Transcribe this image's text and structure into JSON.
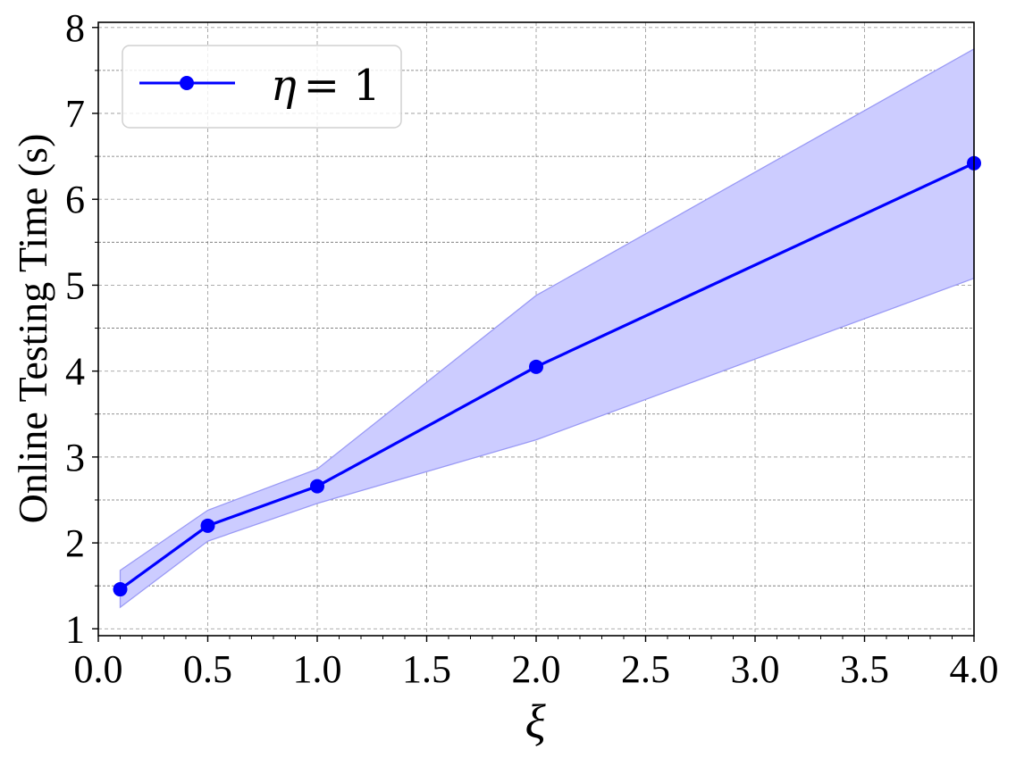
{
  "chart_data": {
    "type": "line",
    "title": "",
    "xlabel": "ξ",
    "ylabel": "Online Testing Time (s)",
    "xlim": [
      0.0,
      4.0
    ],
    "ylim": [
      0.92,
      8.06
    ],
    "xticks": [
      0.0,
      0.5,
      1.0,
      1.5,
      2.0,
      2.5,
      3.0,
      3.5,
      4.0
    ],
    "xtick_labels": [
      "0.0",
      "0.5",
      "1.0",
      "1.5",
      "2.0",
      "2.5",
      "3.0",
      "3.5",
      "4.0"
    ],
    "yticks": [
      1,
      2,
      3,
      4,
      5,
      6,
      7,
      8
    ],
    "ytick_labels": [
      "1",
      "2",
      "3",
      "4",
      "5",
      "6",
      "7",
      "8"
    ],
    "grid": true,
    "legend_position": "top-left",
    "series": [
      {
        "name": "η = 1",
        "legend_symbol": "η",
        "legend_value": "= 1",
        "color": "#0000ff",
        "band_color": "#ccccff",
        "x": [
          0.1,
          0.5,
          1.0,
          2.0,
          4.0
        ],
        "y": [
          1.46,
          2.2,
          2.66,
          4.05,
          6.42
        ],
        "y_upper": [
          1.68,
          2.38,
          2.86,
          4.88,
          7.75
        ],
        "y_lower": [
          1.25,
          2.02,
          2.46,
          3.2,
          5.08
        ]
      }
    ]
  }
}
